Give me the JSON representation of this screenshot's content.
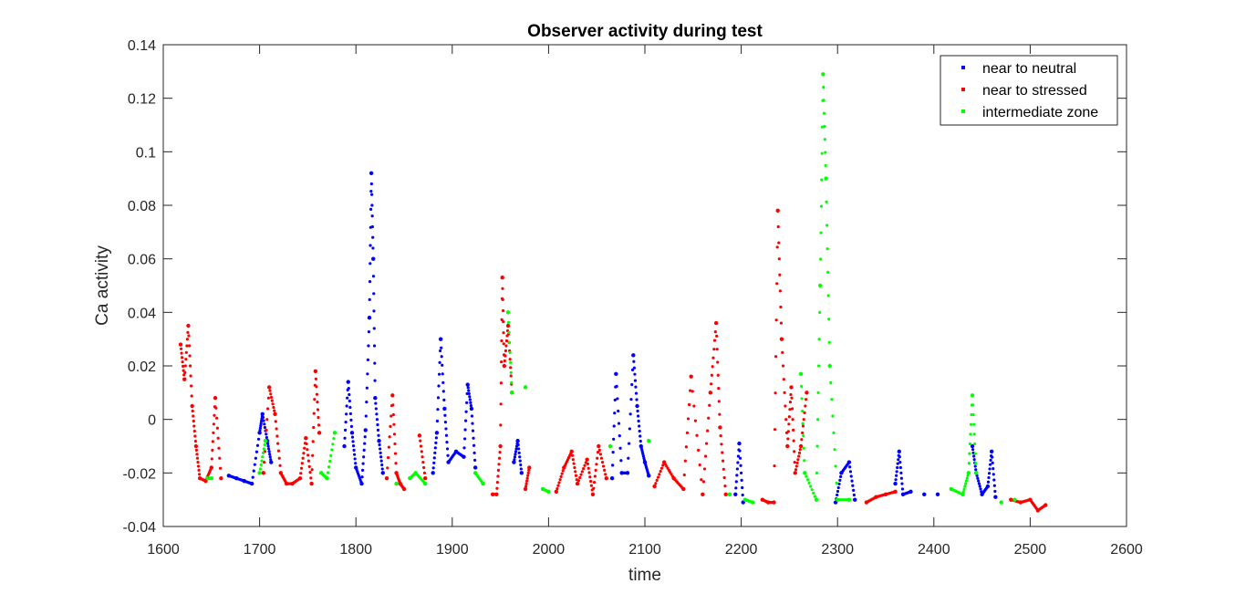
{
  "chart_data": {
    "type": "scatter",
    "title": "Observer activity during test",
    "xlabel": "time",
    "ylabel": "Ca activity",
    "xlim": [
      1600,
      2600
    ],
    "ylim": [
      -0.04,
      0.14
    ],
    "xticks": [
      1600,
      1700,
      1800,
      1900,
      2000,
      2100,
      2200,
      2300,
      2400,
      2500,
      2600
    ],
    "yticks": [
      -0.04,
      -0.02,
      0,
      0.02,
      0.04,
      0.06,
      0.08,
      0.1,
      0.12,
      0.14
    ],
    "xtick_labels": [
      "1600",
      "1700",
      "1800",
      "1900",
      "2000",
      "2100",
      "2200",
      "2300",
      "2400",
      "2500",
      "2600"
    ],
    "ytick_labels": [
      "-0.04",
      "-0.02",
      "0",
      "0.02",
      "0.04",
      "0.06",
      "0.08",
      "0.1",
      "0.12",
      "0.14"
    ],
    "grid": false,
    "legend_position": "top-right",
    "marker": "dot",
    "series": [
      {
        "name": "near to neutral",
        "color": "#0000ff",
        "x": [
          1668,
          1676,
          1684,
          1692,
          1700,
          1703,
          1708,
          1712,
          1788,
          1792,
          1796,
          1800,
          1806,
          1810,
          1814,
          1816,
          1818,
          1820,
          1824,
          1828,
          1880,
          1884,
          1888,
          1892,
          1896,
          1904,
          1912,
          1916,
          1920,
          1924,
          1964,
          1968,
          1972,
          2066,
          2070,
          2076,
          2082,
          2088,
          2092,
          2096,
          2100,
          2104,
          2194,
          2198,
          2202,
          2298,
          2304,
          2312,
          2318,
          2360,
          2364,
          2368,
          2376,
          2390,
          2404,
          2440,
          2444,
          2450,
          2456,
          2460,
          2464
        ],
        "y": [
          -0.021,
          -0.022,
          -0.023,
          -0.024,
          -0.005,
          0.002,
          -0.008,
          -0.016,
          -0.01,
          0.014,
          -0.005,
          -0.018,
          -0.024,
          -0.004,
          0.038,
          0.092,
          0.06,
          0.008,
          -0.008,
          -0.02,
          -0.02,
          -0.005,
          0.03,
          0.004,
          -0.016,
          -0.012,
          -0.014,
          0.013,
          0.004,
          -0.018,
          -0.016,
          -0.008,
          -0.02,
          -0.022,
          0.017,
          -0.02,
          -0.02,
          0.024,
          0.005,
          -0.01,
          -0.016,
          -0.021,
          -0.028,
          -0.009,
          -0.031,
          -0.031,
          -0.02,
          -0.016,
          -0.03,
          -0.024,
          -0.012,
          -0.028,
          -0.027,
          -0.028,
          -0.028,
          -0.01,
          -0.02,
          -0.028,
          -0.025,
          -0.012,
          -0.029
        ]
      },
      {
        "name": "near to stressed",
        "color": "#ff0000",
        "x": [
          1618,
          1622,
          1626,
          1630,
          1634,
          1638,
          1644,
          1650,
          1654,
          1660,
          1704,
          1710,
          1716,
          1722,
          1728,
          1734,
          1742,
          1748,
          1754,
          1758,
          1762,
          1832,
          1838,
          1842,
          1846,
          1850,
          1866,
          1872,
          1942,
          1946,
          1950,
          1952,
          1954,
          1958,
          1962,
          1976,
          1980,
          2008,
          2016,
          2024,
          2030,
          2040,
          2046,
          2052,
          2060,
          2110,
          2120,
          2130,
          2140,
          2148,
          2160,
          2168,
          2174,
          2178,
          2184,
          2222,
          2228,
          2234,
          2238,
          2242,
          2248,
          2252,
          2256,
          2262,
          2268,
          2330,
          2340,
          2350,
          2360,
          2480,
          2490,
          2500,
          2508,
          2516
        ],
        "y": [
          0.028,
          0.015,
          0.035,
          0.005,
          -0.01,
          -0.022,
          -0.023,
          -0.018,
          0.008,
          -0.022,
          -0.02,
          0.012,
          0.002,
          -0.02,
          -0.024,
          -0.024,
          -0.022,
          -0.007,
          -0.024,
          0.018,
          -0.005,
          -0.022,
          0.009,
          -0.02,
          -0.024,
          -0.026,
          -0.006,
          -0.022,
          -0.028,
          -0.028,
          -0.01,
          0.053,
          0.02,
          0.035,
          0.01,
          -0.026,
          -0.018,
          -0.027,
          -0.018,
          -0.012,
          -0.024,
          -0.015,
          -0.028,
          -0.01,
          -0.022,
          -0.025,
          -0.016,
          -0.022,
          -0.026,
          0.016,
          -0.028,
          0.01,
          0.036,
          -0.003,
          -0.028,
          -0.03,
          -0.031,
          -0.031,
          0.078,
          0.03,
          -0.01,
          0.012,
          -0.02,
          -0.01,
          0.01,
          -0.031,
          -0.029,
          -0.028,
          -0.027,
          -0.03,
          -0.031,
          -0.03,
          -0.034,
          -0.032
        ]
      },
      {
        "name": "intermediate zone",
        "color": "#00ff00",
        "x": [
          1646,
          1650,
          1700,
          1706,
          1764,
          1770,
          1778,
          1842,
          1856,
          1862,
          1872,
          1924,
          1932,
          1958,
          1962,
          1976,
          1994,
          2000,
          2064,
          2104,
          2188,
          2204,
          2212,
          2262,
          2266,
          2278,
          2282,
          2285,
          2288,
          2292,
          2300,
          2312,
          2418,
          2430,
          2436,
          2440,
          2444,
          2470,
          2484
        ],
        "y": [
          -0.022,
          -0.022,
          -0.02,
          -0.008,
          -0.02,
          -0.022,
          -0.005,
          -0.024,
          -0.022,
          -0.02,
          -0.024,
          -0.02,
          -0.024,
          0.04,
          0.01,
          0.012,
          -0.026,
          -0.027,
          -0.01,
          -0.008,
          -0.028,
          -0.03,
          -0.031,
          0.017,
          -0.02,
          -0.03,
          0.05,
          0.129,
          0.09,
          0.02,
          -0.03,
          -0.03,
          -0.026,
          -0.028,
          -0.02,
          0.009,
          -0.02,
          -0.031,
          -0.03
        ]
      }
    ]
  }
}
